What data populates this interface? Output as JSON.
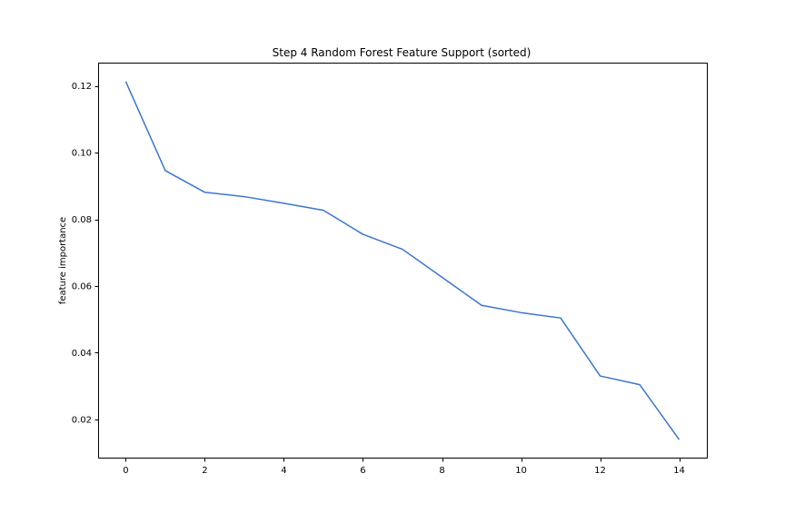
{
  "chart_data": {
    "type": "line",
    "title": "Step 4 Random Forest Feature Support (sorted)",
    "xlabel": "",
    "ylabel": "feature importance",
    "xlim": [
      -0.7,
      14.7
    ],
    "ylim": [
      0.0085,
      0.127
    ],
    "xticks": [
      0,
      2,
      4,
      6,
      8,
      10,
      12,
      14
    ],
    "xtick_labels": [
      "0",
      "2",
      "4",
      "6",
      "8",
      "10",
      "12",
      "14"
    ],
    "yticks": [
      0.02,
      0.04,
      0.06,
      0.08,
      0.1,
      0.12
    ],
    "ytick_labels": [
      "0.02",
      "0.04",
      "0.06",
      "0.08",
      "0.10",
      "0.12"
    ],
    "grid": false,
    "series": [
      {
        "color": "#3a75d0",
        "x": [
          0,
          1,
          2,
          3,
          4,
          5,
          6,
          7,
          8,
          9,
          10,
          11,
          12,
          13,
          14
        ],
        "values": [
          0.1213,
          0.0946,
          0.0881,
          0.0868,
          0.0848,
          0.0827,
          0.0755,
          0.071,
          0.0626,
          0.0542,
          0.052,
          0.0504,
          0.033,
          0.0304,
          0.0139
        ]
      }
    ]
  }
}
